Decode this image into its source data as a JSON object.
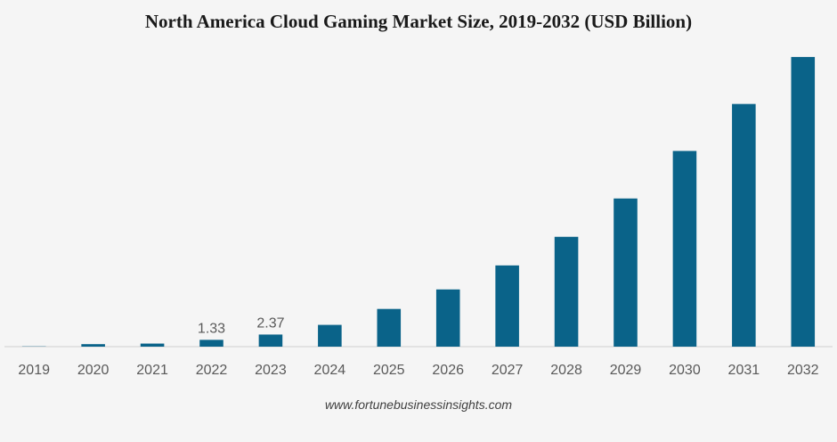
{
  "chart_data": {
    "type": "bar",
    "title": "North America Cloud Gaming Market Size, 2019-2032 (USD Billion)",
    "xlabel": "",
    "ylabel": "",
    "categories": [
      "2019",
      "2020",
      "2021",
      "2022",
      "2023",
      "2024",
      "2025",
      "2026",
      "2027",
      "2028",
      "2029",
      "2030",
      "2031",
      "2032"
    ],
    "values": [
      0.05,
      0.49,
      0.6,
      1.33,
      2.37,
      4.26,
      7.38,
      11.2,
      15.9,
      21.5,
      29.0,
      38.3,
      47.5,
      56.7
    ],
    "data_labels": [
      {
        "category": "2022",
        "text": "1.33"
      },
      {
        "category": "2023",
        "text": "2.37"
      }
    ],
    "ylim": [
      0,
      60
    ],
    "y_axis_visible": false,
    "grid": false,
    "legend": "none",
    "bar_color": "#0a6389",
    "source_text": "www.fortunebusinessinsights.com"
  }
}
